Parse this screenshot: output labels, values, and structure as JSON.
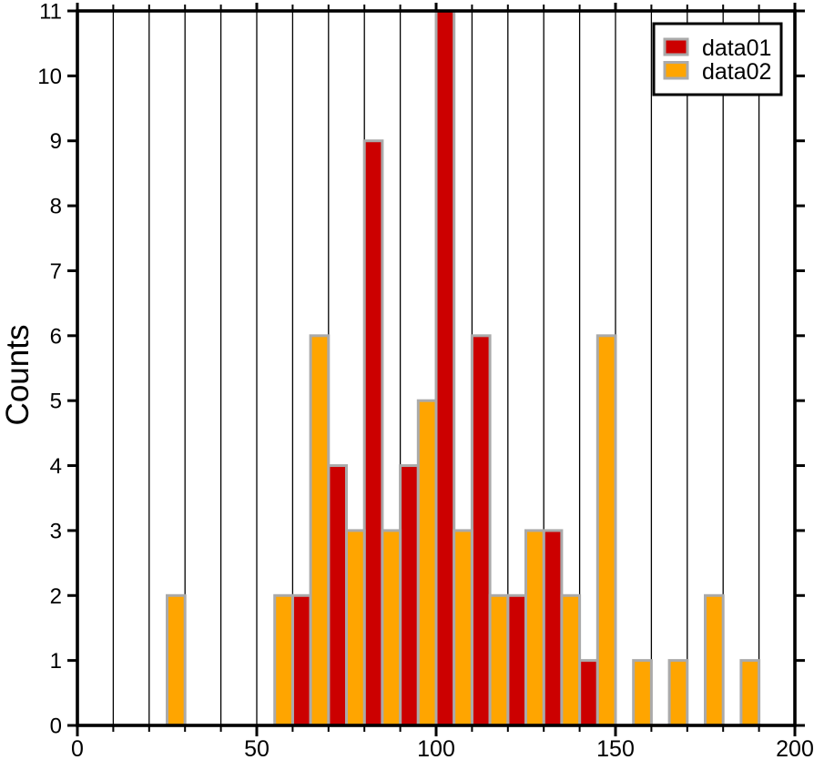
{
  "chart_data": {
    "type": "histogram",
    "title": "",
    "xlabel": "",
    "ylabel": "Counts",
    "xlim": [
      0,
      200
    ],
    "ylim": [
      0,
      11
    ],
    "x_major_ticks": [
      0,
      50,
      100,
      150,
      200
    ],
    "x_minor_tick_step": 10,
    "y_ticks": [
      0,
      1,
      2,
      3,
      4,
      5,
      6,
      7,
      8,
      9,
      10,
      11
    ],
    "grid": {
      "vertical_step": 10,
      "horizontal": false
    },
    "bin_width": 10,
    "bar_outline_color": "#aaaaaa",
    "axis_color": "#000000",
    "background_color": "#ffffff",
    "legend": {
      "position": "top-right"
    },
    "series": [
      {
        "name": "data01",
        "color": "#cc0000",
        "bins": [
          [
            60,
            70,
            2
          ],
          [
            70,
            80,
            4
          ],
          [
            80,
            90,
            9
          ],
          [
            90,
            100,
            4
          ],
          [
            100,
            110,
            11
          ],
          [
            110,
            120,
            6
          ],
          [
            120,
            130,
            2
          ],
          [
            130,
            140,
            3
          ],
          [
            140,
            150,
            1
          ]
        ]
      },
      {
        "name": "data02",
        "color": "#ffa500",
        "bins": [
          [
            20,
            30,
            2
          ],
          [
            50,
            60,
            2
          ],
          [
            60,
            70,
            6
          ],
          [
            70,
            80,
            3
          ],
          [
            80,
            90,
            3
          ],
          [
            90,
            100,
            5
          ],
          [
            100,
            110,
            3
          ],
          [
            110,
            120,
            2
          ],
          [
            120,
            130,
            3
          ],
          [
            130,
            140,
            2
          ],
          [
            140,
            150,
            6
          ],
          [
            150,
            160,
            1
          ],
          [
            160,
            170,
            1
          ],
          [
            170,
            180,
            2
          ],
          [
            180,
            190,
            1
          ]
        ]
      }
    ]
  }
}
